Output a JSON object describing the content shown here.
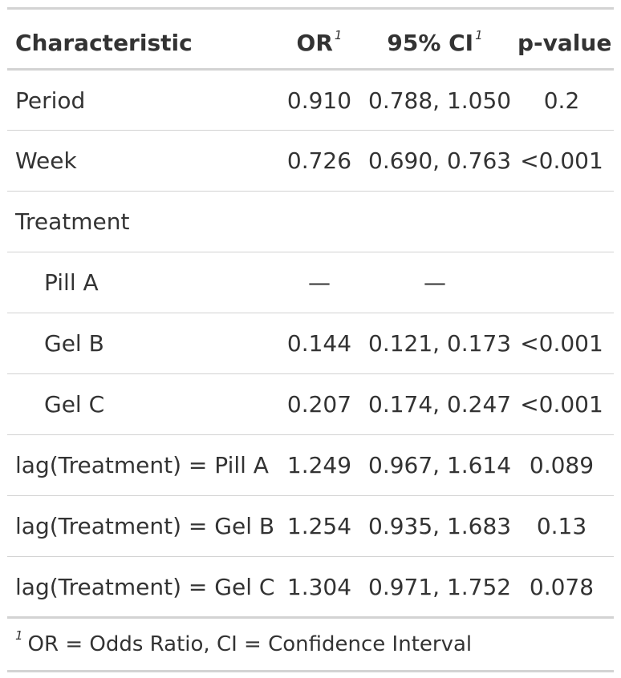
{
  "table": {
    "headers": {
      "characteristic": "Characteristic",
      "or": "OR",
      "ci": "95% CI",
      "pvalue": "p-value",
      "footnote_marker": "1"
    },
    "rows": [
      {
        "label": "Period",
        "or": "0.910",
        "ci": "0.788, 1.050",
        "p": "0.2"
      },
      {
        "label": "Week",
        "or": "0.726",
        "ci": "0.690, 0.763",
        "p": "<0.001"
      },
      {
        "label": "Treatment",
        "or": "",
        "ci": "",
        "p": ""
      },
      {
        "label": "Pill A",
        "or": "—",
        "ci": "—",
        "p": ""
      },
      {
        "label": "Gel B",
        "or": "0.144",
        "ci": "0.121, 0.173",
        "p": "<0.001"
      },
      {
        "label": "Gel C",
        "or": "0.207",
        "ci": "0.174, 0.247",
        "p": "<0.001"
      },
      {
        "label": "lag(Treatment) = Pill A",
        "or": "1.249",
        "ci": "0.967, 1.614",
        "p": "0.089"
      },
      {
        "label": "lag(Treatment) = Gel B",
        "or": "1.254",
        "ci": "0.935, 1.683",
        "p": "0.13"
      },
      {
        "label": "lag(Treatment) = Gel C",
        "or": "1.304",
        "ci": "0.971, 1.752",
        "p": "0.078"
      }
    ],
    "footnote": {
      "marker": "1",
      "text": "OR = Odds Ratio, CI = Confidence Interval"
    }
  }
}
